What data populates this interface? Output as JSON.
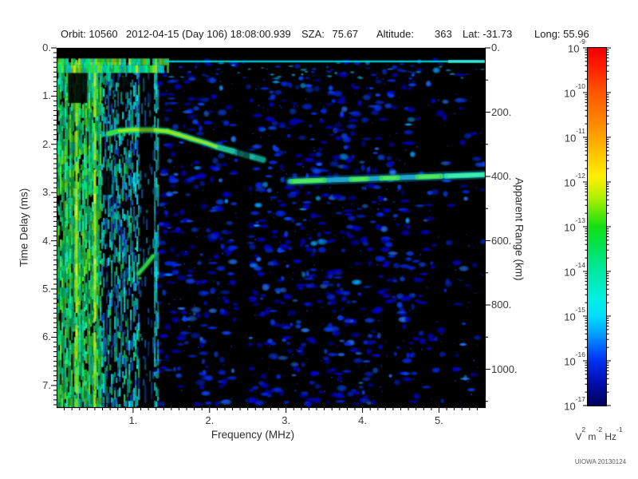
{
  "header": {
    "orbit": {
      "label": "Orbit:",
      "value": "10560"
    },
    "datetime": {
      "value": "2012-04-15 (Day 106) 18:08:00.939"
    },
    "sza": {
      "label": "SZA:",
      "value": "75.67"
    },
    "altitude": {
      "label": "Altitude:",
      "value": "363"
    },
    "lat": {
      "label": "Lat:",
      "value": "-31.73"
    },
    "long": {
      "label": "Long:",
      "value": "55.96"
    }
  },
  "footer": {
    "credit": "UIOWA 20130124"
  },
  "chart_data": {
    "type": "heatmap",
    "subtype": "radar-sounder-ionogram-spectrogram",
    "title": "",
    "x_axis": {
      "label": "Frequency (MHz)",
      "range": [
        0,
        5.6
      ],
      "tick_values": [
        1,
        2,
        3,
        4,
        5
      ],
      "tick_labels": [
        "1.",
        "2.",
        "3.",
        "4.",
        "5."
      ],
      "minor_step": 0.1
    },
    "y_axis": {
      "label": "Time Delay (ms)",
      "range": [
        0,
        7.45
      ],
      "tick_values": [
        0,
        1,
        2,
        3,
        4,
        5,
        6,
        7
      ],
      "tick_labels": [
        "0.",
        "1.",
        "2.",
        "3.",
        "4.",
        "5.",
        "6.",
        "7."
      ],
      "minor_step": 0.1
    },
    "y2_axis": {
      "label": "Apparent Range (km)",
      "range": [
        0,
        1118
      ],
      "tick_values": [
        0,
        200,
        400,
        600,
        800,
        1000
      ],
      "tick_labels": [
        "0.",
        "200.",
        "400.",
        "600.",
        "800.",
        "1000."
      ],
      "minor_step": 100
    },
    "colorbar": {
      "scale": "log",
      "top_value": "1e-9",
      "bottom_value": "1e-17",
      "tick_exponents": [
        "-9",
        "-10",
        "-11",
        "-12",
        "-13",
        "-14",
        "-15",
        "-16",
        "-17"
      ],
      "unit_parts": [
        {
          "base": "V",
          "exp": "2"
        },
        {
          "base": "m",
          "exp": "-2"
        },
        {
          "base": "Hz",
          "exp": "-1"
        }
      ],
      "gradient": [
        [
          0,
          "#f00000"
        ],
        [
          0.05,
          "#ff1c00"
        ],
        [
          0.125,
          "#ff5600"
        ],
        [
          0.22,
          "#ff8e00"
        ],
        [
          0.3,
          "#ffc600"
        ],
        [
          0.36,
          "#fff000"
        ],
        [
          0.42,
          "#aef000"
        ],
        [
          0.5,
          "#12e012"
        ],
        [
          0.565,
          "#00e45e"
        ],
        [
          0.625,
          "#00e8a2"
        ],
        [
          0.7,
          "#00f0e2"
        ],
        [
          0.75,
          "#00defc"
        ],
        [
          0.795,
          "#00a6ff"
        ],
        [
          0.84,
          "#0060ff"
        ],
        [
          0.875,
          "#0030f0"
        ],
        [
          0.93,
          "#0010b6"
        ],
        [
          1,
          "#000058"
        ]
      ]
    },
    "features": {
      "top_blanking_band": {
        "f0": 0,
        "f1": 5.6,
        "t0": 0,
        "t1": 0.205
      },
      "top_noise_band": {
        "f0": 0,
        "f1": 1.45,
        "t0": 0.22,
        "t1": 0.52
      },
      "top_surface_line": {
        "f0": 1.4,
        "f1": 5.6,
        "t": 0.26,
        "bright_from_f": 5.12
      },
      "noise_region": {
        "f0": 0,
        "f1": 1.08,
        "dense_to_f": 0.58,
        "t0": 0.22,
        "t1": 7.45,
        "yellow_stripe_f": [
          0.26,
          0.5
        ],
        "dark_patches": [
          [
            0.15,
            0.42,
            0.4,
            1.14
          ],
          [
            0.82,
            0.6,
            0.96,
            0.92
          ],
          [
            0.6,
            2.55,
            0.72,
            3.05
          ]
        ]
      },
      "quiet_bands": [
        {
          "f0": 1.08,
          "f1": 1.27
        },
        {
          "f0": 2.36,
          "f1": 2.52
        }
      ],
      "cyan_column_f": [
        1.28,
        1.33
      ],
      "ionosphere_echo_trace": {
        "f": [
          0.68,
          0.82,
          1.0,
          1.25,
          1.45,
          1.6,
          1.76,
          1.95,
          2.09,
          2.3,
          2.42,
          2.56,
          2.7
        ],
        "t": [
          1.78,
          1.72,
          1.7,
          1.7,
          1.73,
          1.8,
          1.88,
          1.97,
          2.05,
          2.14,
          2.2,
          2.26,
          2.32
        ],
        "core_ranges": [
          [
            0.9,
            1.55
          ],
          [
            1.7,
            1.98
          ]
        ]
      },
      "hook_echo": {
        "f": [
          1.07,
          1.16,
          1.26
        ],
        "t": [
          4.68,
          4.52,
          4.32
        ]
      },
      "surface_echo_trace": {
        "f0": 3.05,
        "f1": 5.6,
        "t_at_f0": 2.77,
        "t_at_f1": 2.63,
        "apparent_range_km": 400,
        "bright_segments": [
          [
            3.08,
            3.5
          ],
          [
            3.85,
            4.06
          ],
          [
            4.25,
            4.46
          ],
          [
            4.72,
            5.02
          ],
          [
            5.1,
            5.6
          ]
        ]
      }
    },
    "render": {
      "seed": 20130124,
      "blob_count": 1150,
      "speck_count": 420,
      "subline_blob_count": 70,
      "blob_colors": [
        "#0000c8",
        "#0028e8",
        "#0a46ff",
        "#2878ff",
        "#00a0ff"
      ],
      "noise_dense": [
        "#00e070",
        "#20e8a0",
        "#40e030",
        "#00d8b8",
        "#10c060",
        "#60e818",
        "#00f090"
      ],
      "noise_mid": [
        "#00d0b0",
        "#00b8d8",
        "#2078d8",
        "#00d060",
        "#0048c8",
        "#00e0e0"
      ],
      "noise_dim": [
        "#0068d0",
        "#00a0c0",
        "#0040b0"
      ],
      "noise_cyan": [
        "#00d8c8",
        "#00e8e0",
        "#20c0e0"
      ],
      "yellow": [
        "#c8e800",
        "#a8e020",
        "#e0f028",
        "#88d810"
      ],
      "top_mottle": [
        "#30e040",
        "#70e818",
        "#b8e818",
        "#00e890",
        "#00d0d0"
      ],
      "trace_colors": {
        "iono_glow": "#00c896",
        "iono_main_1": "#38e050",
        "iono_main_2": "#2cd070",
        "iono_main_3": "#24c494",
        "iono_tail": "#1cbcb0",
        "iono_core": "#a6e81e",
        "surface_glow": "#00aadc",
        "surface_base": "#1faed8",
        "surface_bright": "#3ad85c",
        "surface_core": "#58ea5e",
        "surface_tail": "#2ee0a0",
        "hook": "#2ed44c",
        "top_line": "#00ccdc",
        "top_line_bright": "#30ecd8"
      }
    }
  }
}
